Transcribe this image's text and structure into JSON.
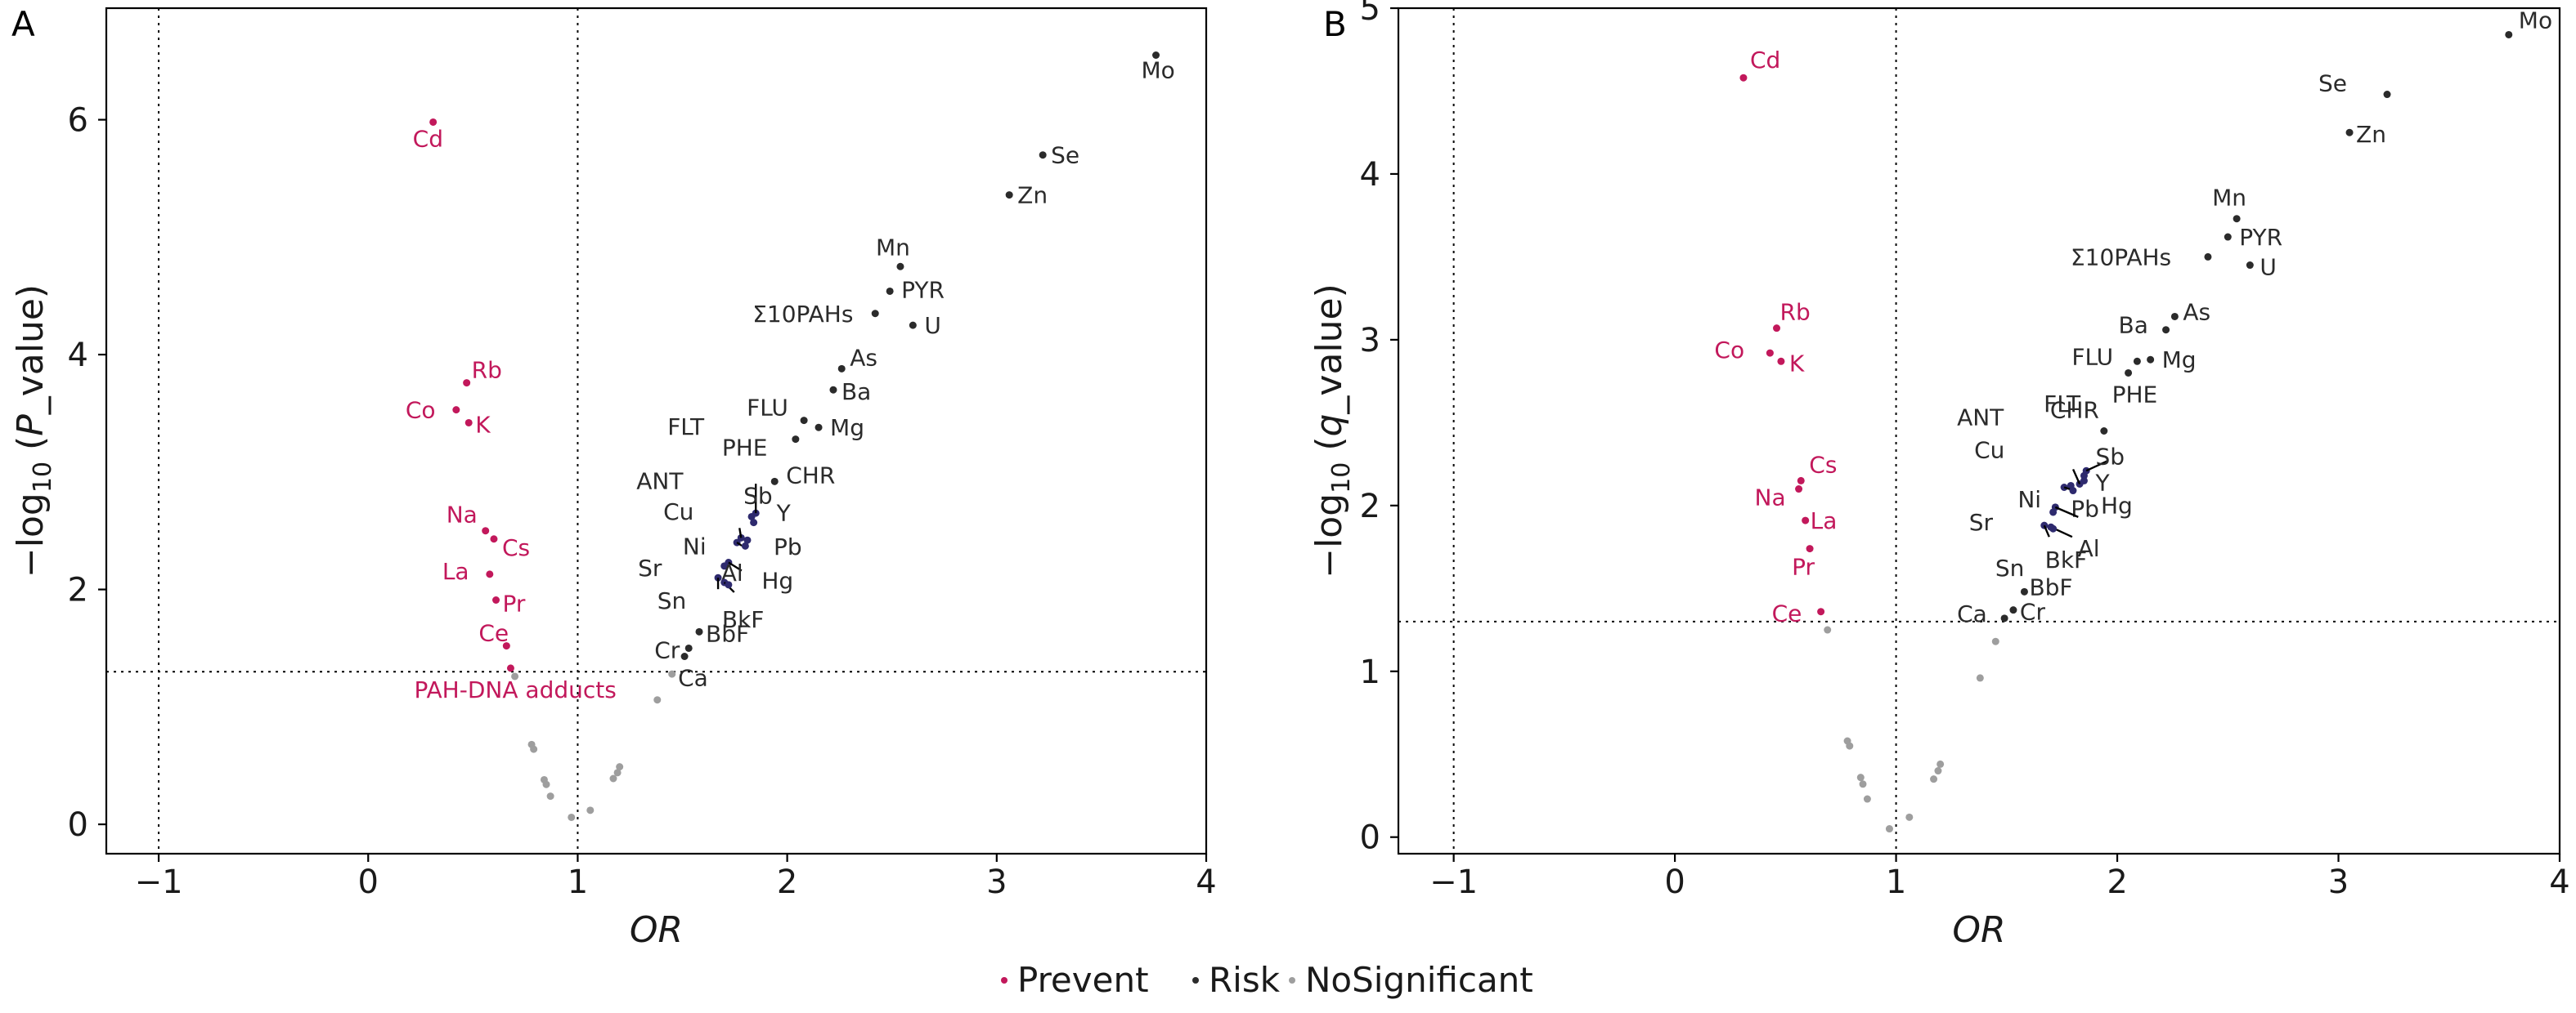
{
  "colors": {
    "Prevent": "#c2185b",
    "Risk": "#2b2b2b",
    "NoSignificant": "#9e9e9e",
    "risk_cluster": "#2e2a6e"
  },
  "legend": {
    "items": [
      {
        "key": "Prevent",
        "label": "Prevent"
      },
      {
        "key": "Risk",
        "label": "Risk"
      },
      {
        "key": "NoSignificant",
        "label": "NoSignificant"
      }
    ],
    "placement": "bottom-center"
  },
  "chart_data": [
    {
      "type": "scatter",
      "panel": "A",
      "xlabel": "OR",
      "ylabel_prefix": "−log",
      "ylabel_sub": "10",
      "ylabel_open": " (",
      "ylabel_var": "P",
      "ylabel_rest": "_value)",
      "xlim": [
        -1.25,
        4
      ],
      "ylim": [
        -0.25,
        6.95
      ],
      "x_ticks": [
        -1,
        0,
        1,
        2,
        3,
        4
      ],
      "x_tick_labels": [
        "−1",
        "0",
        "1",
        "2",
        "3",
        "4"
      ],
      "y_ticks": [
        0,
        2,
        4,
        6
      ],
      "y_tick_labels": [
        "0",
        "2",
        "4",
        "6"
      ],
      "vlines": [
        -1,
        1
      ],
      "hline": 1.3,
      "grid": false,
      "points": [
        {
          "x": 3.76,
          "y": 6.55,
          "label": "Mo",
          "group": "Risk"
        },
        {
          "x": 3.22,
          "y": 5.7,
          "label": "Se",
          "group": "Risk"
        },
        {
          "x": 3.06,
          "y": 5.36,
          "label": "Zn",
          "group": "Risk"
        },
        {
          "x": 2.54,
          "y": 4.75,
          "label": "Mn",
          "group": "Risk"
        },
        {
          "x": 2.49,
          "y": 4.54,
          "label": "PYR",
          "group": "Risk"
        },
        {
          "x": 2.42,
          "y": 4.35,
          "label": "Σ10PAHs",
          "group": "Risk"
        },
        {
          "x": 2.6,
          "y": 4.25,
          "label": "U",
          "group": "Risk"
        },
        {
          "x": 2.26,
          "y": 3.88,
          "label": "As",
          "group": "Risk"
        },
        {
          "x": 2.22,
          "y": 3.7,
          "label": "Ba",
          "group": "Risk"
        },
        {
          "x": 2.08,
          "y": 3.44,
          "label": "FLU",
          "group": "Risk"
        },
        {
          "x": 2.15,
          "y": 3.38,
          "label": "Mg",
          "group": "Risk"
        },
        {
          "x": 2.04,
          "y": 3.28,
          "label": "PHE",
          "group": "Risk"
        },
        {
          "x": 1.94,
          "y": 2.92,
          "label": "CHR",
          "group": "Risk"
        },
        {
          "x": 1.85,
          "y": 2.65,
          "label": "FLT",
          "group": "Risk"
        },
        {
          "x": 1.83,
          "y": 2.62,
          "label": "Sb",
          "group": "Risk"
        },
        {
          "x": 1.84,
          "y": 2.57,
          "label": "Y",
          "group": "Risk"
        },
        {
          "x": 1.78,
          "y": 2.44,
          "label": "ANT",
          "group": "Risk"
        },
        {
          "x": 1.81,
          "y": 2.42,
          "label": "Pb",
          "group": "Risk"
        },
        {
          "x": 1.76,
          "y": 2.4,
          "label": "Cu",
          "group": "Risk"
        },
        {
          "x": 1.8,
          "y": 2.37,
          "label": "Hg",
          "group": "Risk"
        },
        {
          "x": 1.72,
          "y": 2.23,
          "label": "Ni",
          "group": "Risk"
        },
        {
          "x": 1.7,
          "y": 2.2,
          "label": "Al",
          "group": "Risk"
        },
        {
          "x": 1.67,
          "y": 2.1,
          "label": "Sr",
          "group": "Risk"
        },
        {
          "x": 1.7,
          "y": 2.06,
          "label": "Sn",
          "group": "Risk"
        },
        {
          "x": 1.72,
          "y": 2.04,
          "label": "BkF",
          "group": "Risk"
        },
        {
          "x": 1.58,
          "y": 1.64,
          "label": "BbF",
          "group": "Risk"
        },
        {
          "x": 1.53,
          "y": 1.5,
          "label": "Cr",
          "group": "Risk"
        },
        {
          "x": 1.51,
          "y": 1.43,
          "label": "Ca",
          "group": "Risk"
        },
        {
          "x": 0.31,
          "y": 5.98,
          "label": "Cd",
          "group": "Prevent"
        },
        {
          "x": 0.47,
          "y": 3.76,
          "label": "Rb",
          "group": "Prevent"
        },
        {
          "x": 0.42,
          "y": 3.53,
          "label": "Co",
          "group": "Prevent"
        },
        {
          "x": 0.48,
          "y": 3.42,
          "label": "K",
          "group": "Prevent"
        },
        {
          "x": 0.56,
          "y": 2.5,
          "label": "Na",
          "group": "Prevent"
        },
        {
          "x": 0.6,
          "y": 2.43,
          "label": "Cs",
          "group": "Prevent"
        },
        {
          "x": 0.58,
          "y": 2.13,
          "label": "La",
          "group": "Prevent"
        },
        {
          "x": 0.61,
          "y": 1.91,
          "label": "Pr",
          "group": "Prevent"
        },
        {
          "x": 0.66,
          "y": 1.52,
          "label": "Ce",
          "group": "Prevent"
        },
        {
          "x": 0.68,
          "y": 1.33,
          "label": "PAH-DNA adducts",
          "group": "Prevent"
        },
        {
          "x": 0.7,
          "y": 1.26,
          "label": "",
          "group": "NoSignificant"
        },
        {
          "x": 1.45,
          "y": 1.28,
          "label": "",
          "group": "NoSignificant"
        },
        {
          "x": 1.38,
          "y": 1.06,
          "label": "",
          "group": "NoSignificant"
        },
        {
          "x": 0.78,
          "y": 0.68,
          "label": "",
          "group": "NoSignificant"
        },
        {
          "x": 0.79,
          "y": 0.64,
          "label": "",
          "group": "NoSignificant"
        },
        {
          "x": 0.84,
          "y": 0.38,
          "label": "",
          "group": "NoSignificant"
        },
        {
          "x": 0.85,
          "y": 0.34,
          "label": "",
          "group": "NoSignificant"
        },
        {
          "x": 0.87,
          "y": 0.24,
          "label": "",
          "group": "NoSignificant"
        },
        {
          "x": 0.97,
          "y": 0.06,
          "label": "",
          "group": "NoSignificant"
        },
        {
          "x": 1.06,
          "y": 0.12,
          "label": "",
          "group": "NoSignificant"
        },
        {
          "x": 1.17,
          "y": 0.39,
          "label": "",
          "group": "NoSignificant"
        },
        {
          "x": 1.19,
          "y": 0.44,
          "label": "",
          "group": "NoSignificant"
        },
        {
          "x": 1.2,
          "y": 0.49,
          "label": "",
          "group": "NoSignificant"
        }
      ]
    },
    {
      "type": "scatter",
      "panel": "B",
      "xlabel": "OR",
      "ylabel_prefix": "−log",
      "ylabel_sub": "10",
      "ylabel_open": " (",
      "ylabel_var": "q",
      "ylabel_rest": "_value)",
      "xlim": [
        -1.25,
        4
      ],
      "ylim": [
        -0.1,
        5
      ],
      "x_ticks": [
        -1,
        0,
        1,
        2,
        3,
        4
      ],
      "x_tick_labels": [
        "−1",
        "0",
        "1",
        "2",
        "3",
        "4"
      ],
      "y_ticks": [
        0,
        1,
        2,
        3,
        4,
        5
      ],
      "y_tick_labels": [
        "0",
        "1",
        "2",
        "3",
        "4",
        "5"
      ],
      "vlines": [
        -1,
        1
      ],
      "hline": 1.3,
      "grid": false,
      "points": [
        {
          "x": 3.77,
          "y": 4.84,
          "label": "Mo",
          "group": "Risk"
        },
        {
          "x": 3.22,
          "y": 4.48,
          "label": "Se",
          "group": "Risk"
        },
        {
          "x": 3.05,
          "y": 4.25,
          "label": "Zn",
          "group": "Risk"
        },
        {
          "x": 2.54,
          "y": 3.73,
          "label": "Mn",
          "group": "Risk"
        },
        {
          "x": 2.5,
          "y": 3.62,
          "label": "PYR",
          "group": "Risk"
        },
        {
          "x": 2.41,
          "y": 3.5,
          "label": "Σ10PAHs",
          "group": "Risk"
        },
        {
          "x": 2.6,
          "y": 3.45,
          "label": "U",
          "group": "Risk"
        },
        {
          "x": 2.26,
          "y": 3.14,
          "label": "As",
          "group": "Risk"
        },
        {
          "x": 2.22,
          "y": 3.06,
          "label": "Ba",
          "group": "Risk"
        },
        {
          "x": 2.15,
          "y": 2.88,
          "label": "Mg",
          "group": "Risk"
        },
        {
          "x": 2.09,
          "y": 2.87,
          "label": "FLU",
          "group": "Risk"
        },
        {
          "x": 2.05,
          "y": 2.8,
          "label": "PHE",
          "group": "Risk"
        },
        {
          "x": 1.94,
          "y": 2.45,
          "label": "CHR",
          "group": "Risk"
        },
        {
          "x": 1.86,
          "y": 2.21,
          "label": "FLT",
          "group": "Risk"
        },
        {
          "x": 1.85,
          "y": 2.18,
          "label": "Sb",
          "group": "Risk"
        },
        {
          "x": 1.85,
          "y": 2.15,
          "label": "Y",
          "group": "Risk"
        },
        {
          "x": 1.83,
          "y": 2.13,
          "label": "ANT",
          "group": "Risk"
        },
        {
          "x": 1.79,
          "y": 2.12,
          "label": "Pb",
          "group": "Risk"
        },
        {
          "x": 1.76,
          "y": 2.11,
          "label": "Cu",
          "group": "Risk"
        },
        {
          "x": 1.8,
          "y": 2.09,
          "label": "Hg",
          "group": "Risk"
        },
        {
          "x": 1.72,
          "y": 1.99,
          "label": "Ni",
          "group": "Risk"
        },
        {
          "x": 1.71,
          "y": 1.96,
          "label": "Al",
          "group": "Risk"
        },
        {
          "x": 1.67,
          "y": 1.88,
          "label": "Sr",
          "group": "Risk"
        },
        {
          "x": 1.7,
          "y": 1.87,
          "label": "Sn",
          "group": "Risk"
        },
        {
          "x": 1.71,
          "y": 1.86,
          "label": "BkF",
          "group": "Risk"
        },
        {
          "x": 1.58,
          "y": 1.48,
          "label": "BbF",
          "group": "Risk"
        },
        {
          "x": 1.53,
          "y": 1.37,
          "label": "Cr",
          "group": "Risk"
        },
        {
          "x": 1.49,
          "y": 1.32,
          "label": "Ca",
          "group": "Risk"
        },
        {
          "x": 0.31,
          "y": 4.58,
          "label": "Cd",
          "group": "Prevent"
        },
        {
          "x": 0.46,
          "y": 3.07,
          "label": "Rb",
          "group": "Prevent"
        },
        {
          "x": 0.43,
          "y": 2.92,
          "label": "Co",
          "group": "Prevent"
        },
        {
          "x": 0.48,
          "y": 2.87,
          "label": "K",
          "group": "Prevent"
        },
        {
          "x": 0.57,
          "y": 2.15,
          "label": "Cs",
          "group": "Prevent"
        },
        {
          "x": 0.56,
          "y": 2.1,
          "label": "Na",
          "group": "Prevent"
        },
        {
          "x": 0.59,
          "y": 1.91,
          "label": "La",
          "group": "Prevent"
        },
        {
          "x": 0.61,
          "y": 1.74,
          "label": "Pr",
          "group": "Prevent"
        },
        {
          "x": 0.66,
          "y": 1.36,
          "label": "Ce",
          "group": "Prevent"
        },
        {
          "x": 0.69,
          "y": 1.25,
          "label": "",
          "group": "NoSignificant"
        },
        {
          "x": 1.45,
          "y": 1.18,
          "label": "",
          "group": "NoSignificant"
        },
        {
          "x": 1.38,
          "y": 0.96,
          "label": "",
          "group": "NoSignificant"
        },
        {
          "x": 0.78,
          "y": 0.58,
          "label": "",
          "group": "NoSignificant"
        },
        {
          "x": 0.79,
          "y": 0.55,
          "label": "",
          "group": "NoSignificant"
        },
        {
          "x": 0.84,
          "y": 0.36,
          "label": "",
          "group": "NoSignificant"
        },
        {
          "x": 0.85,
          "y": 0.32,
          "label": "",
          "group": "NoSignificant"
        },
        {
          "x": 0.87,
          "y": 0.23,
          "label": "",
          "group": "NoSignificant"
        },
        {
          "x": 0.97,
          "y": 0.05,
          "label": "",
          "group": "NoSignificant"
        },
        {
          "x": 1.06,
          "y": 0.12,
          "label": "",
          "group": "NoSignificant"
        },
        {
          "x": 1.17,
          "y": 0.35,
          "label": "",
          "group": "NoSignificant"
        },
        {
          "x": 1.19,
          "y": 0.4,
          "label": "",
          "group": "NoSignificant"
        },
        {
          "x": 1.2,
          "y": 0.44,
          "label": "",
          "group": "NoSignificant"
        }
      ]
    }
  ]
}
